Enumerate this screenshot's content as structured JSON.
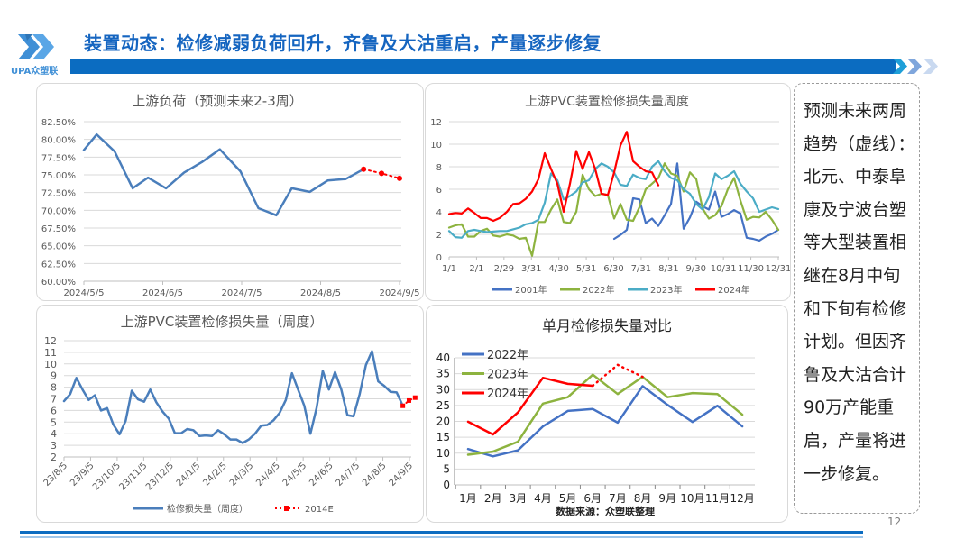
{
  "header": {
    "title": "装置动态：检修减弱负荷回升，齐鲁及大沽重启，产量逐步修复",
    "logo_text": "UPA众塑联"
  },
  "colors": {
    "brand_blue": "#0b6cc1",
    "title_blue": "#1565c0",
    "s2001": "#4472c4",
    "s2022": "#8db33f",
    "s2023": "#4bacc6",
    "s2024": "#ff0000"
  },
  "note": {
    "lines": [
      "预测未来两周",
      "趋势（虚线）：",
      "北元、中泰阜",
      "康及宁波台塑",
      "等大型装置相",
      "继在8月中旬",
      "和下旬有检修",
      "计划。但因齐",
      "鲁及大沽合计",
      "90万产能重",
      "启，产量将进",
      "一步修复。"
    ]
  },
  "page_number": "12",
  "chart_data": [
    {
      "type": "line",
      "title": "上游负荷（预测未来2-3周）",
      "ylim": [
        60,
        82.5
      ],
      "yticks": [
        "60.00%",
        "62.50%",
        "65.00%",
        "67.50%",
        "70.00%",
        "72.50%",
        "75.00%",
        "77.50%",
        "80.00%",
        "82.50%"
      ],
      "xticks": [
        "2024/5/5",
        "2024/6/5",
        "2024/7/5",
        "2024/8/5",
        "2024/9/5"
      ],
      "grid": true,
      "series": [
        {
          "style": "solid",
          "color": "#4a7ebb",
          "x": [
            "5/5",
            "5/10",
            "5/17",
            "5/24",
            "5/30",
            "6/6",
            "6/13",
            "6/20",
            "6/27",
            "7/5",
            "7/12",
            "7/19",
            "7/25",
            "8/1",
            "8/8",
            "8/15",
            "8/22"
          ],
          "values": [
            78.5,
            80.7,
            78.3,
            73.1,
            74.6,
            73.1,
            75.3,
            76.8,
            78.6,
            75.5,
            70.3,
            69.3,
            73.1,
            72.6,
            74.2,
            74.4,
            75.8
          ]
        },
        {
          "style": "dotted-forecast",
          "color": "#ff0000",
          "x": [
            "8/22",
            "8/29",
            "9/5"
          ],
          "values": [
            75.8,
            75.2,
            74.5
          ]
        }
      ]
    },
    {
      "type": "line",
      "title": "上游PVC装置检修损失量周度",
      "ylim": [
        0,
        12
      ],
      "yticks": [
        "0",
        "2",
        "4",
        "6",
        "8",
        "10",
        "12"
      ],
      "xticks": [
        "1/1",
        "2/1",
        "2/29",
        "3/31",
        "4/30",
        "5/31",
        "6/30",
        "7/31",
        "8/31",
        "9/30",
        "10/31",
        "11/30",
        "12/31"
      ],
      "x": [
        "1/1",
        "1/8",
        "1/15",
        "1/22",
        "1/29",
        "2/5",
        "2/12",
        "2/19",
        "2/26",
        "3/5",
        "3/12",
        "3/19",
        "3/26",
        "4/2",
        "4/9",
        "4/16",
        "4/23",
        "4/30",
        "5/7",
        "5/14",
        "5/21",
        "5/28",
        "6/4",
        "6/11",
        "6/18",
        "6/25",
        "7/2",
        "7/9",
        "7/16",
        "7/23",
        "7/30",
        "8/6",
        "8/13",
        "8/20",
        "8/27",
        "9/3",
        "9/10",
        "9/17",
        "9/24",
        "10/1",
        "10/8",
        "10/15",
        "10/22",
        "10/29",
        "11/5",
        "11/12",
        "11/19",
        "11/26",
        "12/3",
        "12/10",
        "12/17",
        "12/24",
        "12/31"
      ],
      "legend": "bottom",
      "grid": true,
      "series": [
        {
          "name": "2001年",
          "color": "#4472c4",
          "values": [
            null,
            null,
            null,
            null,
            null,
            null,
            null,
            null,
            null,
            null,
            null,
            null,
            null,
            null,
            null,
            null,
            null,
            null,
            null,
            null,
            null,
            null,
            null,
            null,
            null,
            null,
            1.6,
            1.95,
            2.4,
            5.2,
            5.1,
            3.0,
            3.4,
            2.75,
            3.7,
            4.7,
            8.3,
            2.5,
            3.5,
            4.9,
            4.5,
            4.2,
            5.8,
            3.55,
            3.8,
            4.15,
            3.85,
            1.7,
            1.6,
            1.45,
            1.8,
            2.05,
            2.4
          ]
        },
        {
          "name": "2022年",
          "color": "#8db33f",
          "values": [
            2.6,
            2.8,
            2.9,
            1.8,
            1.8,
            2.3,
            2.5,
            1.9,
            1.8,
            2.0,
            1.9,
            1.6,
            1.7,
            0.1,
            3.1,
            3.1,
            4.2,
            5.1,
            3.1,
            3.0,
            4.0,
            7.3,
            6.0,
            5.4,
            5.6,
            5.5,
            3.4,
            4.7,
            3.3,
            3.2,
            4.4,
            6.0,
            6.5,
            7.0,
            8.3,
            7.4,
            7.2,
            5.8,
            7.5,
            6.9,
            4.3,
            3.4,
            3.7,
            4.5,
            6.0,
            7.0,
            5.0,
            3.3,
            3.55,
            3.5,
            4.0,
            3.3,
            2.4
          ]
        },
        {
          "name": "2023年",
          "color": "#4bacc6",
          "values": [
            2.3,
            1.75,
            1.7,
            2.3,
            2.4,
            2.3,
            2.2,
            2.25,
            2.3,
            2.3,
            2.45,
            2.6,
            2.9,
            3.0,
            3.3,
            4.8,
            7.4,
            6.8,
            5.1,
            5.4,
            5.8,
            6.6,
            6.8,
            7.8,
            8.3,
            8.0,
            7.5,
            6.4,
            6.3,
            7.3,
            7.0,
            6.9,
            8.0,
            8.5,
            7.6,
            7.0,
            6.8,
            6.0,
            5.6,
            4.7,
            4.2,
            5.3,
            7.4,
            6.9,
            7.2,
            7.6,
            6.5,
            5.8,
            5.2,
            4.0,
            4.2,
            4.4,
            4.25
          ]
        },
        {
          "name": "2024年",
          "color": "#ff0000",
          "values": [
            3.8,
            3.9,
            3.85,
            4.3,
            3.9,
            3.45,
            3.45,
            3.2,
            3.45,
            4.0,
            4.7,
            4.75,
            5.15,
            5.8,
            6.9,
            9.2,
            7.8,
            6.5,
            4.0,
            6.5,
            9.4,
            7.8,
            9.3,
            7.8,
            5.6,
            5.5,
            7.5,
            9.9,
            11.1,
            8.5,
            8.0,
            7.6,
            7.5,
            6.35,
            null,
            null,
            null,
            null,
            null,
            null,
            null,
            null,
            null,
            null,
            null,
            null,
            null,
            null,
            null,
            null,
            null,
            null,
            null
          ]
        }
      ]
    },
    {
      "type": "line",
      "title": "上游PVC装置检修损失量（周度）",
      "ylim": [
        2,
        12
      ],
      "yticks": [
        "2",
        "3",
        "4",
        "5",
        "6",
        "7",
        "8",
        "9",
        "10",
        "11",
        "12"
      ],
      "xticks": [
        "23/8/5",
        "23/9/5",
        "23/10/5",
        "23/11/5",
        "23/12/5",
        "24/1/5",
        "24/2/5",
        "24/3/5",
        "24/4/5",
        "24/5/5",
        "24/6/5",
        "24/7/5",
        "24/8/5",
        "24/9/5"
      ],
      "legend": "bottom",
      "grid": true,
      "series": [
        {
          "name": "检修损失量（周度）",
          "color": "#4a7ebb",
          "style": "solid",
          "values": [
            6.8,
            7.4,
            8.8,
            7.8,
            6.9,
            7.3,
            6.0,
            6.2,
            4.8,
            3.95,
            5.1,
            7.7,
            6.95,
            6.75,
            7.8,
            6.7,
            5.9,
            5.3,
            4.05,
            4.05,
            4.4,
            4.3,
            3.8,
            3.85,
            3.8,
            4.3,
            3.95,
            3.5,
            3.5,
            3.2,
            3.5,
            4.0,
            4.7,
            4.75,
            5.15,
            5.8,
            6.9,
            9.2,
            7.8,
            6.4,
            4.0,
            6.2,
            9.4,
            7.8,
            9.3,
            7.8,
            5.6,
            5.5,
            7.4,
            9.9,
            11.1,
            8.5,
            8.1,
            7.6,
            7.55,
            6.4
          ]
        },
        {
          "name": "2014E",
          "color": "#ff0000",
          "style": "dotted-forecast",
          "values": [
            6.4,
            6.85,
            7.1
          ]
        }
      ]
    },
    {
      "type": "line",
      "title": "单月检修损失量对比",
      "ylim": [
        0,
        40
      ],
      "yticks": [
        "0",
        "5",
        "10",
        "15",
        "20",
        "25",
        "30",
        "35",
        "40"
      ],
      "categories": [
        "1月",
        "2月",
        "3月",
        "4月",
        "5月",
        "6月",
        "7月",
        "8月",
        "9月",
        "10月",
        "11月",
        "12月"
      ],
      "legend": "top-left",
      "grid": true,
      "source": "数据来源：众塑联整理",
      "series": [
        {
          "name": "2022年",
          "color": "#4472c4",
          "values": [
            11.3,
            9.0,
            10.9,
            18.4,
            23.3,
            23.9,
            19.6,
            31.1,
            25.2,
            19.8,
            24.9,
            18.4
          ]
        },
        {
          "name": "2023年",
          "color": "#8db33f",
          "values": [
            9.5,
            10.5,
            13.6,
            25.6,
            27.6,
            34.7,
            28.6,
            34.0,
            27.6,
            28.9,
            28.6,
            22.1
          ]
        },
        {
          "name": "2024年",
          "color": "#ff0000",
          "values": [
            19.9,
            15.9,
            22.8,
            33.7,
            31.8,
            31.2,
            null,
            null,
            null,
            null,
            null,
            null
          ]
        },
        {
          "style": "dotted-forecast",
          "color": "#ff0000",
          "values": [
            null,
            null,
            null,
            null,
            null,
            31.2,
            37.8,
            34.0,
            null,
            null,
            null,
            null
          ]
        }
      ]
    }
  ]
}
